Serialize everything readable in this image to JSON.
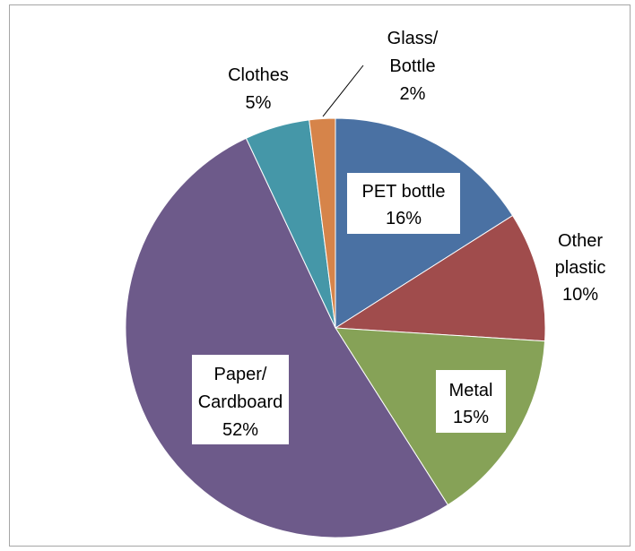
{
  "chart_data": {
    "type": "pie",
    "title": "",
    "start_angle_deg": 0,
    "direction": "clockwise",
    "slices": [
      {
        "name": "PET bottle",
        "value": 16,
        "label": "16%",
        "color": "#4a71a3"
      },
      {
        "name": "Other plastic",
        "value": 10,
        "label": "10%",
        "color": "#a04c4c"
      },
      {
        "name": "Metal",
        "value": 15,
        "label": "15%",
        "color": "#86a257"
      },
      {
        "name": "Paper/ Cardboard",
        "value": 52,
        "label": "52%",
        "color": "#6d5a8a"
      },
      {
        "name": "Clothes",
        "value": 5,
        "label": "5%",
        "color": "#4597a8"
      },
      {
        "name": "Glass/ Bottle",
        "value": 2,
        "label": "2%",
        "color": "#d6844a"
      }
    ],
    "labels": {
      "pet": {
        "line1": "PET bottle",
        "line2": "16%"
      },
      "other_plastic": {
        "line1": "Other",
        "line2": "plastic",
        "line3": "10%"
      },
      "metal": {
        "line1": "Metal",
        "line2": "15%"
      },
      "paper": {
        "line1": "Paper/",
        "line2": "Cardboard",
        "line3": "52%"
      },
      "clothes": {
        "line1": "Clothes",
        "line2": "5%"
      },
      "glass": {
        "line1": "Glass/",
        "line2": "Bottle",
        "line3": "2%"
      }
    },
    "legend": "none"
  }
}
